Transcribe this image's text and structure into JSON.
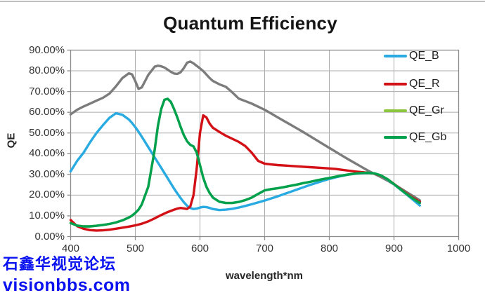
{
  "page": {
    "watermark": {
      "line1": "石鑫华视觉论坛",
      "line2": "visionbbs.com",
      "color": "#0A12EF"
    }
  },
  "legend": {
    "position": "top-right-inside",
    "entries": [
      {
        "label": "QE_B",
        "color": "#29ABE2"
      },
      {
        "label": "QE_R",
        "color": "#D21015"
      },
      {
        "label": "QE_Gr",
        "color": "#8CC63F"
      },
      {
        "label": "QE_Gb",
        "color": "#00A14E"
      }
    ]
  },
  "chart_data": {
    "type": "line",
    "title": "Quantum Efficiency",
    "xlabel": "wavelength*nm",
    "ylabel": "QE",
    "xlim": [
      400,
      1000
    ],
    "ylim": [
      0,
      90
    ],
    "grid": true,
    "x_tick_values": [
      400,
      500,
      600,
      700,
      800,
      900,
      1000
    ],
    "x_tick_labels": [
      "400",
      "500",
      "600",
      "700",
      "800",
      "900",
      "1000"
    ],
    "y_tick_values": [
      90,
      80,
      70,
      60,
      50,
      40,
      30,
      20,
      10,
      0
    ],
    "y_tick_labels": [
      "90.00%",
      "80.00%",
      "70.00%",
      "60.00%",
      "50.00%",
      "40.00%",
      "30.00%",
      "20.00%",
      "10.00%",
      "0.00%"
    ],
    "grid_color": "#ABABAB",
    "border_color": "#8C8C8C",
    "x": [
      400,
      410,
      420,
      430,
      440,
      450,
      460,
      470,
      480,
      490,
      495,
      500,
      505,
      510,
      520,
      530,
      535,
      540,
      545,
      550,
      555,
      560,
      565,
      570,
      575,
      580,
      585,
      590,
      595,
      600,
      605,
      610,
      615,
      620,
      630,
      640,
      650,
      660,
      670,
      680,
      690,
      700,
      710,
      720,
      730,
      740,
      750,
      760,
      770,
      780,
      790,
      800,
      810,
      820,
      830,
      840,
      850,
      860,
      870,
      880,
      890,
      900,
      910,
      920,
      930,
      940
    ],
    "series": [
      {
        "name": "unlabeled-gray",
        "in_legend": false,
        "color": "#7C7C7C",
        "values": [
          59,
          61.2,
          62.8,
          64.2,
          65.6,
          67,
          69,
          72.5,
          76.5,
          78.8,
          78.3,
          75,
          71.3,
          72,
          78,
          82,
          82.5,
          82.2,
          81.6,
          80.6,
          79.5,
          78.7,
          78.5,
          79.3,
          81.3,
          83.9,
          84.5,
          83.6,
          82.4,
          81.2,
          79.9,
          78.2,
          76.5,
          75.1,
          73.5,
          72.3,
          69.6,
          66.6,
          65.4,
          64.2,
          62.7,
          61.2,
          59.4,
          57.6,
          55.8,
          54,
          52.2,
          50.4,
          48.5,
          46.6,
          44.7,
          42.8,
          40.9,
          39,
          37.2,
          35.4,
          33.6,
          31.8,
          30.2,
          28.7,
          27,
          25.2,
          23.3,
          21.4,
          19.5,
          17.5
        ]
      },
      {
        "name": "QE_B",
        "in_legend": true,
        "color": "#29ABE2",
        "values": [
          31.5,
          36.5,
          40.5,
          45.5,
          50,
          53.8,
          57.3,
          59.5,
          58.8,
          56.5,
          54.8,
          52.8,
          50.6,
          48.2,
          43.2,
          38.2,
          35.7,
          33.2,
          30.7,
          28.2,
          25.6,
          23.1,
          20.8,
          18.6,
          16.6,
          14.9,
          13.8,
          13.3,
          13.5,
          14,
          14.3,
          14.2,
          13.8,
          13.3,
          12.8,
          13,
          13.4,
          14,
          14.8,
          15.6,
          16.5,
          17.4,
          18.4,
          19.4,
          20.5,
          21.6,
          22.7,
          23.8,
          24.9,
          25.9,
          26.9,
          27.8,
          28.6,
          29.3,
          29.9,
          30.3,
          30.6,
          30.7,
          30.5,
          29.4,
          27.5,
          25.2,
          22.7,
          20.2,
          17.6,
          15
        ]
      },
      {
        "name": "QE_R",
        "in_legend": true,
        "color": "#D21015",
        "values": [
          8,
          5,
          3.8,
          3.1,
          2.9,
          3,
          3.3,
          3.8,
          4.3,
          4.8,
          5.1,
          5.4,
          5.8,
          6.2,
          7.3,
          8.8,
          9.6,
          10.4,
          11.1,
          11.8,
          12.4,
          13,
          13.5,
          13.8,
          13.6,
          13.3,
          14.5,
          20,
          33,
          50,
          58.5,
          57.5,
          54.5,
          52.5,
          50.5,
          48.7,
          47.2,
          45.7,
          43.7,
          40.5,
          36.5,
          35.2,
          34.8,
          34.5,
          34.3,
          34.1,
          33.9,
          33.7,
          33.5,
          33.3,
          33.1,
          32.9,
          32.6,
          32.2,
          31.8,
          31.4,
          31.1,
          30.8,
          30.4,
          29.4,
          27.7,
          25.4,
          23,
          20.7,
          18.6,
          16.8
        ]
      },
      {
        "name": "QE_Gr",
        "in_legend": true,
        "color": "#8CC63F",
        "values": [
          6.5,
          5.3,
          4.9,
          4.9,
          5.2,
          5.6,
          6.1,
          6.8,
          7.8,
          9.2,
          10.1,
          11.4,
          13,
          15.5,
          24,
          42,
          53.5,
          61.5,
          66,
          66.5,
          65,
          61.5,
          57.5,
          53,
          49,
          46,
          44.3,
          43.5,
          40.5,
          34.5,
          28.5,
          24,
          21,
          18.8,
          16.8,
          16.2,
          16.2,
          16.7,
          17.6,
          18.8,
          20.6,
          22.3,
          22.9,
          23.3,
          23.9,
          24.5,
          25.1,
          25.8,
          26.4,
          27.1,
          27.7,
          28.3,
          28.9,
          29.5,
          30,
          30.4,
          30.7,
          30.8,
          30.5,
          29.5,
          27.7,
          25.3,
          22.8,
          20.4,
          18.2,
          16.2
        ]
      },
      {
        "name": "QE_Gb",
        "in_legend": true,
        "color": "#00A14E",
        "values": [
          6.5,
          5.3,
          4.9,
          4.9,
          5.2,
          5.6,
          6.1,
          6.8,
          7.8,
          9.2,
          10.1,
          11.4,
          13,
          15.5,
          24,
          42,
          53.5,
          61.5,
          66,
          66.5,
          65,
          61.5,
          57.5,
          53,
          49,
          46,
          44.3,
          43.5,
          40.5,
          34.5,
          28.5,
          24,
          21,
          18.8,
          16.8,
          16.2,
          16.2,
          16.7,
          17.6,
          18.8,
          20.6,
          22.3,
          22.9,
          23.3,
          23.9,
          24.5,
          25.1,
          25.8,
          26.4,
          27.1,
          27.7,
          28.3,
          28.9,
          29.5,
          30,
          30.4,
          30.7,
          30.8,
          30.5,
          29.5,
          27.7,
          25.3,
          22.8,
          20.4,
          18.2,
          16.2
        ]
      }
    ]
  }
}
